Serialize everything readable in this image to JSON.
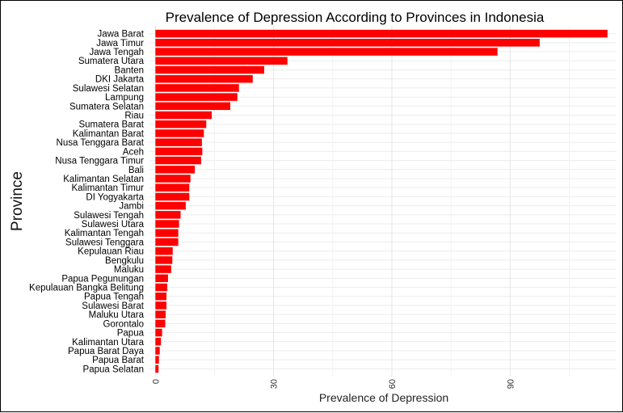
{
  "chart_data": {
    "type": "bar",
    "orientation": "horizontal",
    "title": "Prevalence of Depression According to Provinces in Indonesia",
    "xlabel": "Prevalence of Depression",
    "ylabel": "Province",
    "xlim": [
      -1.5,
      117
    ],
    "xticks": [
      0,
      30,
      60,
      90
    ],
    "xtick_labels": [
      "0",
      "30",
      "60",
      "90"
    ],
    "bar_color": "#ff0000",
    "grid": true,
    "categories": [
      "Jawa Barat",
      "Jawa Timur",
      "Jawa Tengah",
      "Sumatera Utara",
      "Banten",
      "DKI Jakarta",
      "Sulawesi Selatan",
      "Lampung",
      "Sumatera Selatan",
      "Riau",
      "Sumatera Barat",
      "Kalimantan Barat",
      "Nusa Tenggara Barat",
      "Aceh",
      "Nusa Tenggara Timur",
      "Bali",
      "Kalimantan Selatan",
      "Kalimantan Timur",
      "DI Yogyakarta",
      "Jambi",
      "Sulawesi Tengah",
      "Sulawesi Utara",
      "Kalimantan Tengah",
      "Sulawesi Tenggara",
      "Kepulauan Riau",
      "Bengkulu",
      "Maluku",
      "Papua Pegunungan",
      "Kepulauan Bangka Belitung",
      "Papua Tengah",
      "Sulawesi Barat",
      "Maluku Utara",
      "Gorontalo",
      "Papua",
      "Kalimantan Utara",
      "Papua Barat Daya",
      "Papua Barat",
      "Papua Selatan"
    ],
    "values": [
      114.7,
      97.5,
      86.8,
      33.5,
      27.6,
      24.7,
      21.2,
      20.8,
      19.0,
      14.3,
      12.9,
      12.3,
      11.8,
      11.9,
      11.6,
      10.0,
      8.9,
      8.6,
      8.6,
      7.7,
      6.4,
      6.0,
      5.8,
      5.8,
      4.4,
      4.3,
      4.0,
      3.2,
      3.0,
      2.8,
      2.8,
      2.6,
      2.5,
      1.7,
      1.4,
      1.1,
      0.9,
      0.8
    ]
  }
}
